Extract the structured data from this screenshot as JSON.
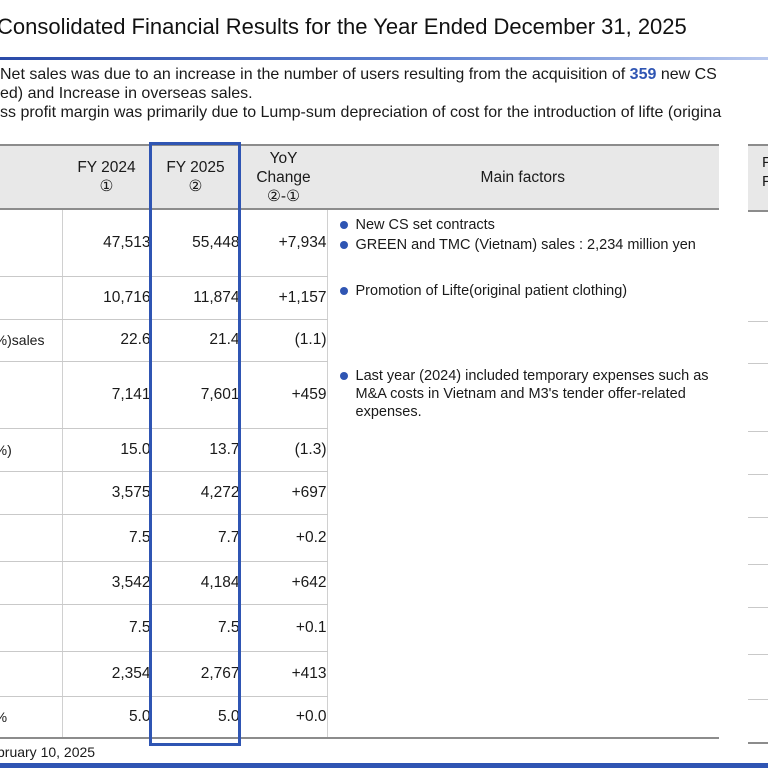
{
  "title": "Consolidated Financial Results for the Year Ended December 31, 2025",
  "bullets": {
    "b1_pre": "Net sales was due to an increase in the number of users resulting from the acquisition of ",
    "b1_num": "359",
    "b1_post": " new CS",
    "b2": "ed) and Increase in overseas sales.",
    "b3": "ss profit margin was primarily due to Lump-sum depreciation of cost for the introduction of lifte (origina"
  },
  "table": {
    "headers": {
      "fy2024": "FY 2024",
      "fy2024_sub": "①",
      "fy2025": "FY 2025",
      "fy2025_sub": "②",
      "yoy1": "YoY",
      "yoy2": "Change",
      "yoy3": "②-①",
      "factors": "Main factors"
    },
    "rows": [
      {
        "label": "",
        "fy2024": "47,513",
        "fy2025": "55,448",
        "change": "+7,934"
      },
      {
        "label": "",
        "fy2024": "10,716",
        "fy2025": "11,874",
        "change": "+1,157"
      },
      {
        "label": "sales(%)",
        "fy2024": "22.6",
        "fy2025": "21.4",
        "change": "(1.1)"
      },
      {
        "label": "",
        "fy2024": "7,141",
        "fy2025": "7,601",
        "change": "+459"
      },
      {
        "label": "(%)",
        "fy2024": "15.0",
        "fy2025": "13.7",
        "change": "(1.3)"
      },
      {
        "label": "",
        "fy2024": "3,575",
        "fy2025": "4,272",
        "change": "+697"
      },
      {
        "label": "",
        "fy2024": "7.5",
        "fy2025": "7.7",
        "change": "+0.2"
      },
      {
        "label": "",
        "fy2024": "3,542",
        "fy2025": "4,184",
        "change": "+642"
      },
      {
        "label": "",
        "fy2024": "7.5",
        "fy2025": "7.5",
        "change": "+0.1"
      },
      {
        "label": "",
        "fy2024": "2,354",
        "fy2025": "2,767",
        "change": "+413"
      },
      {
        "label": "%)",
        "fy2024": "5.0",
        "fy2025": "5.0",
        "change": "+0.0"
      }
    ],
    "factors": {
      "net_sales_1": "New CS set contracts",
      "net_sales_2": "GREEN and TMC (Vietnam) sales : 2,234 million yen",
      "gross_profit_1": "Promotion of Lifte(original patient clothing)",
      "sga_1": "Last year (2024) included temporary expenses such as M&A costs in Vietnam and M3's tender offer-related expenses."
    }
  },
  "right_table": {
    "head1": "F",
    "head2": "F"
  },
  "footer": "bruary 10, 2025",
  "colors": {
    "accent": "#2f55b3",
    "header_bg": "#e8e8e8"
  }
}
